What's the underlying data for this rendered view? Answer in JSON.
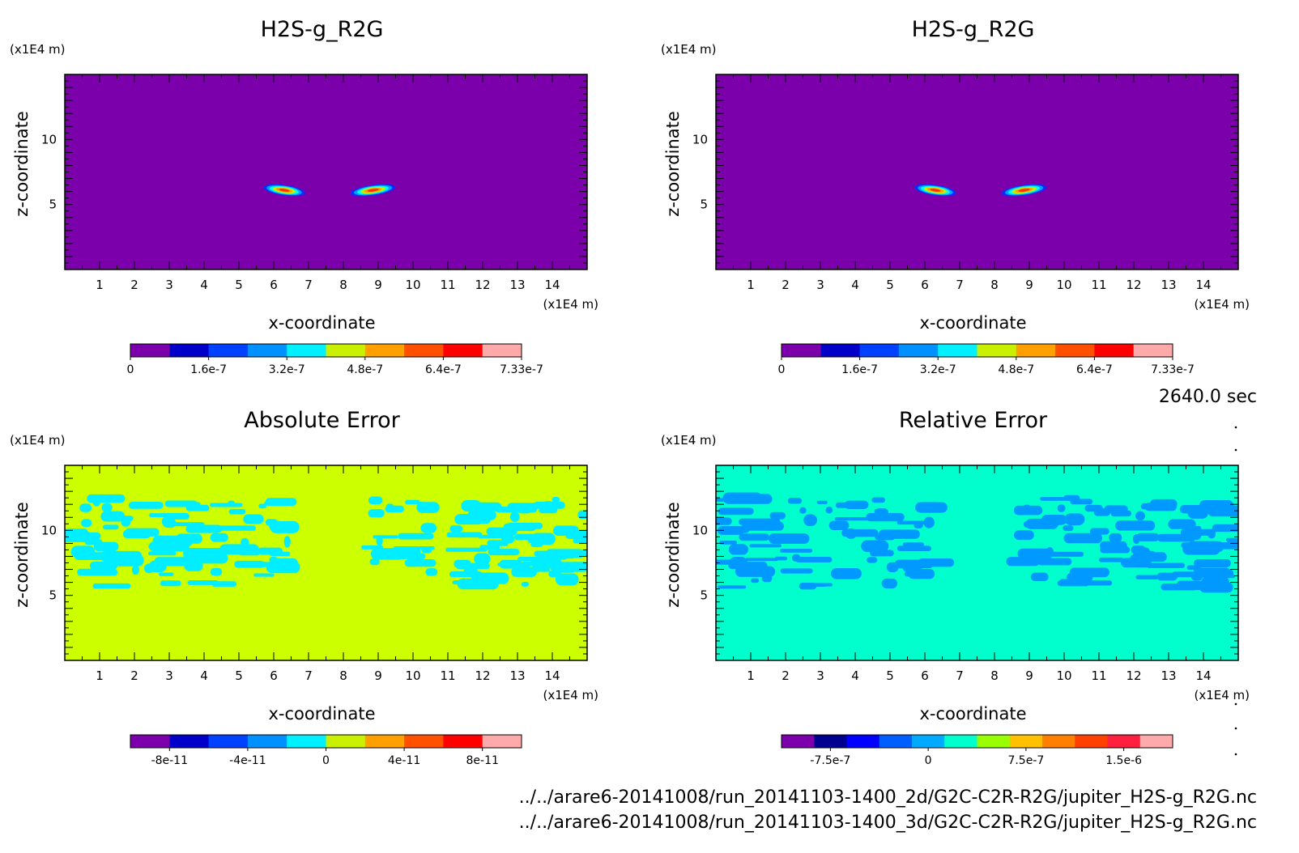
{
  "time_label": "2640.0 sec",
  "source_files": [
    "../../arare6-20141008/run_20141103-1400_2d/G2C-C2R-R2G/jupiter_H2S-g_R2G.nc",
    "../../arare6-20141008/run_20141103-1400_3d/G2C-C2R-R2G/jupiter_H2S-g_R2G.nc"
  ],
  "chart_data": [
    {
      "id": "top-left",
      "type": "heatmap",
      "title": "H2S-g_R2G",
      "xlabel": "x-coordinate",
      "ylabel": "z-coordinate",
      "x_unit": "(x1E4 m)",
      "y_unit": "(x1E4 m)",
      "xlim": [
        0,
        15
      ],
      "ylim": [
        0,
        15
      ],
      "x_ticks": [
        "1",
        "2",
        "3",
        "4",
        "5",
        "6",
        "7",
        "8",
        "9",
        "10",
        "11",
        "12",
        "13",
        "14"
      ],
      "y_ticks": [
        "5",
        "10"
      ],
      "background": "#7b00ab",
      "features": [
        {
          "shape": "blob",
          "x_range": [
            5.7,
            6.9
          ],
          "z_range": [
            5.7,
            6.5
          ],
          "peak": "7.33e-7"
        },
        {
          "shape": "blob",
          "x_range": [
            8.2,
            9.5
          ],
          "z_range": [
            5.7,
            6.5
          ],
          "peak": "7.33e-7"
        }
      ],
      "colorbar": {
        "colors": [
          "#7b00ab",
          "#0000c8",
          "#0040ff",
          "#0090ff",
          "#00f0ff",
          "#c8f000",
          "#ffa000",
          "#ff5000",
          "#ff0000",
          "#ffaaaa"
        ],
        "labels": [
          "0",
          "1.6e-7",
          "3.2e-7",
          "4.8e-7",
          "6.4e-7",
          "7.33e-7"
        ],
        "label_positions": [
          0,
          2,
          4,
          6,
          8,
          10
        ]
      }
    },
    {
      "id": "top-right",
      "type": "heatmap",
      "title": "H2S-g_R2G",
      "xlabel": "x-coordinate",
      "ylabel": "z-coordinate",
      "x_unit": "(x1E4 m)",
      "y_unit": "(x1E4 m)",
      "xlim": [
        0,
        15
      ],
      "ylim": [
        0,
        15
      ],
      "x_ticks": [
        "1",
        "2",
        "3",
        "4",
        "5",
        "6",
        "7",
        "8",
        "9",
        "10",
        "11",
        "12",
        "13",
        "14"
      ],
      "y_ticks": [
        "5",
        "10"
      ],
      "background": "#7b00ab",
      "features": [
        {
          "shape": "blob",
          "x_range": [
            5.7,
            6.9
          ],
          "z_range": [
            5.7,
            6.5
          ],
          "peak": "7.33e-7"
        },
        {
          "shape": "blob",
          "x_range": [
            8.2,
            9.5
          ],
          "z_range": [
            5.7,
            6.5
          ],
          "peak": "7.33e-7"
        }
      ],
      "colorbar": {
        "colors": [
          "#7b00ab",
          "#0000c8",
          "#0040ff",
          "#0090ff",
          "#00f0ff",
          "#c8f000",
          "#ffa000",
          "#ff5000",
          "#ff0000",
          "#ffaaaa"
        ],
        "labels": [
          "0",
          "1.6e-7",
          "3.2e-7",
          "4.8e-7",
          "6.4e-7",
          "7.33e-7"
        ],
        "label_positions": [
          0,
          2,
          4,
          6,
          8,
          10
        ]
      }
    },
    {
      "id": "bottom-left",
      "type": "heatmap",
      "title": "Absolute Error",
      "xlabel": "x-coordinate",
      "ylabel": "z-coordinate",
      "x_unit": "(x1E4 m)",
      "y_unit": "(x1E4 m)",
      "xlim": [
        0,
        15
      ],
      "ylim": [
        0,
        15
      ],
      "x_ticks": [
        "1",
        "2",
        "3",
        "4",
        "5",
        "6",
        "7",
        "8",
        "9",
        "10",
        "11",
        "12",
        "13",
        "14"
      ],
      "y_ticks": [
        "5",
        "10"
      ],
      "background": "#ccff00",
      "patch_color": "#00eeff",
      "patch_band": [
        5.6,
        12.5
      ],
      "colorbar": {
        "colors": [
          "#7b00ab",
          "#0000c8",
          "#0040ff",
          "#0090ff",
          "#00f0ff",
          "#c8f000",
          "#ffa000",
          "#ff5000",
          "#ff0000",
          "#ffaaaa"
        ],
        "labels": [
          "-8e-11",
          "-4e-11",
          "0",
          "4e-11",
          "8e-11"
        ],
        "label_positions": [
          1,
          3,
          5,
          7,
          9
        ]
      }
    },
    {
      "id": "bottom-right",
      "type": "heatmap",
      "title": "Relative Error",
      "xlabel": "x-coordinate",
      "ylabel": "z-coordinate",
      "x_unit": "(x1E4 m)",
      "y_unit": "(x1E4 m)",
      "xlim": [
        0,
        15
      ],
      "ylim": [
        0,
        15
      ],
      "x_ticks": [
        "1",
        "2",
        "3",
        "4",
        "5",
        "6",
        "7",
        "8",
        "9",
        "10",
        "11",
        "12",
        "13",
        "14"
      ],
      "y_ticks": [
        "5",
        "10"
      ],
      "background": "#00ffcc",
      "patch_color": "#0099ff",
      "patch_band": [
        5.6,
        12.5
      ],
      "colorbar": {
        "colors": [
          "#7b00ab",
          "#000090",
          "#0000ff",
          "#0060ff",
          "#00aaff",
          "#00ffcc",
          "#99ff00",
          "#ffc000",
          "#ff8000",
          "#ff4000",
          "#ff2040",
          "#ffaaaa"
        ],
        "labels": [
          "-7.5e-7",
          "0",
          "7.5e-7",
          "1.5e-6"
        ],
        "label_positions": [
          1.5,
          4.5,
          7.5,
          10.5
        ]
      }
    }
  ]
}
